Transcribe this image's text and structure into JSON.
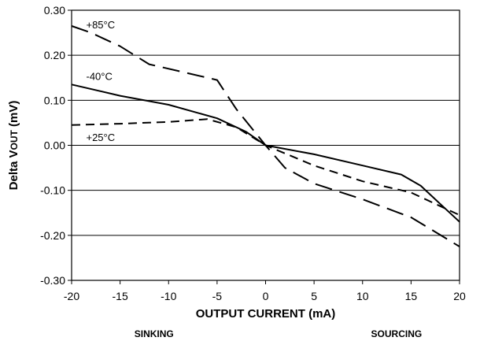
{
  "chart_data": {
    "type": "line",
    "xlabel": "OUTPUT CURRENT (mA)",
    "ylabel_main": "Delta V",
    "ylabel_sub": "OUT",
    "ylabel_unit": " (mV)",
    "xlim": [
      -20,
      20
    ],
    "ylim": [
      -0.3,
      0.3
    ],
    "x_ticks": [
      -20,
      -15,
      -10,
      -5,
      0,
      5,
      10,
      15,
      20
    ],
    "x_tick_labels": [
      "-20",
      "-15",
      "-10",
      "-5",
      "0",
      "5",
      "10",
      "15",
      "20"
    ],
    "y_ticks": [
      0.3,
      0.2,
      0.1,
      0.0,
      -0.1,
      -0.2,
      -0.3
    ],
    "y_tick_labels": [
      "0.30",
      "0.20",
      "0.10",
      "0.00",
      "-0.10",
      "-0.20",
      "-0.30"
    ],
    "horizontal_grid": true,
    "vertical_grid": false,
    "region_labels": {
      "left": "SINKING",
      "right": "SOURCING"
    },
    "series": [
      {
        "name": "+85°C",
        "style": "long-dash",
        "x": [
          -20,
          -18,
          -15,
          -12,
          -8,
          -5,
          -3,
          0,
          2,
          5,
          10,
          15,
          20
        ],
        "y": [
          0.265,
          0.25,
          0.22,
          0.18,
          0.16,
          0.145,
          0.08,
          0.0,
          -0.05,
          -0.085,
          -0.12,
          -0.16,
          -0.225
        ]
      },
      {
        "name": "-40°C",
        "style": "solid",
        "x": [
          -20,
          -15,
          -10,
          -5,
          -2,
          0,
          5,
          10,
          14,
          16,
          18,
          20
        ],
        "y": [
          0.135,
          0.11,
          0.09,
          0.06,
          0.03,
          0.0,
          -0.02,
          -0.045,
          -0.065,
          -0.09,
          -0.13,
          -0.17
        ]
      },
      {
        "name": "+25°C",
        "style": "short-dash",
        "x": [
          -20,
          -15,
          -10,
          -6,
          -3,
          0,
          5,
          10,
          15,
          18,
          20
        ],
        "y": [
          0.045,
          0.048,
          0.052,
          0.058,
          0.04,
          0.0,
          -0.045,
          -0.08,
          -0.105,
          -0.135,
          -0.155
        ]
      }
    ]
  }
}
